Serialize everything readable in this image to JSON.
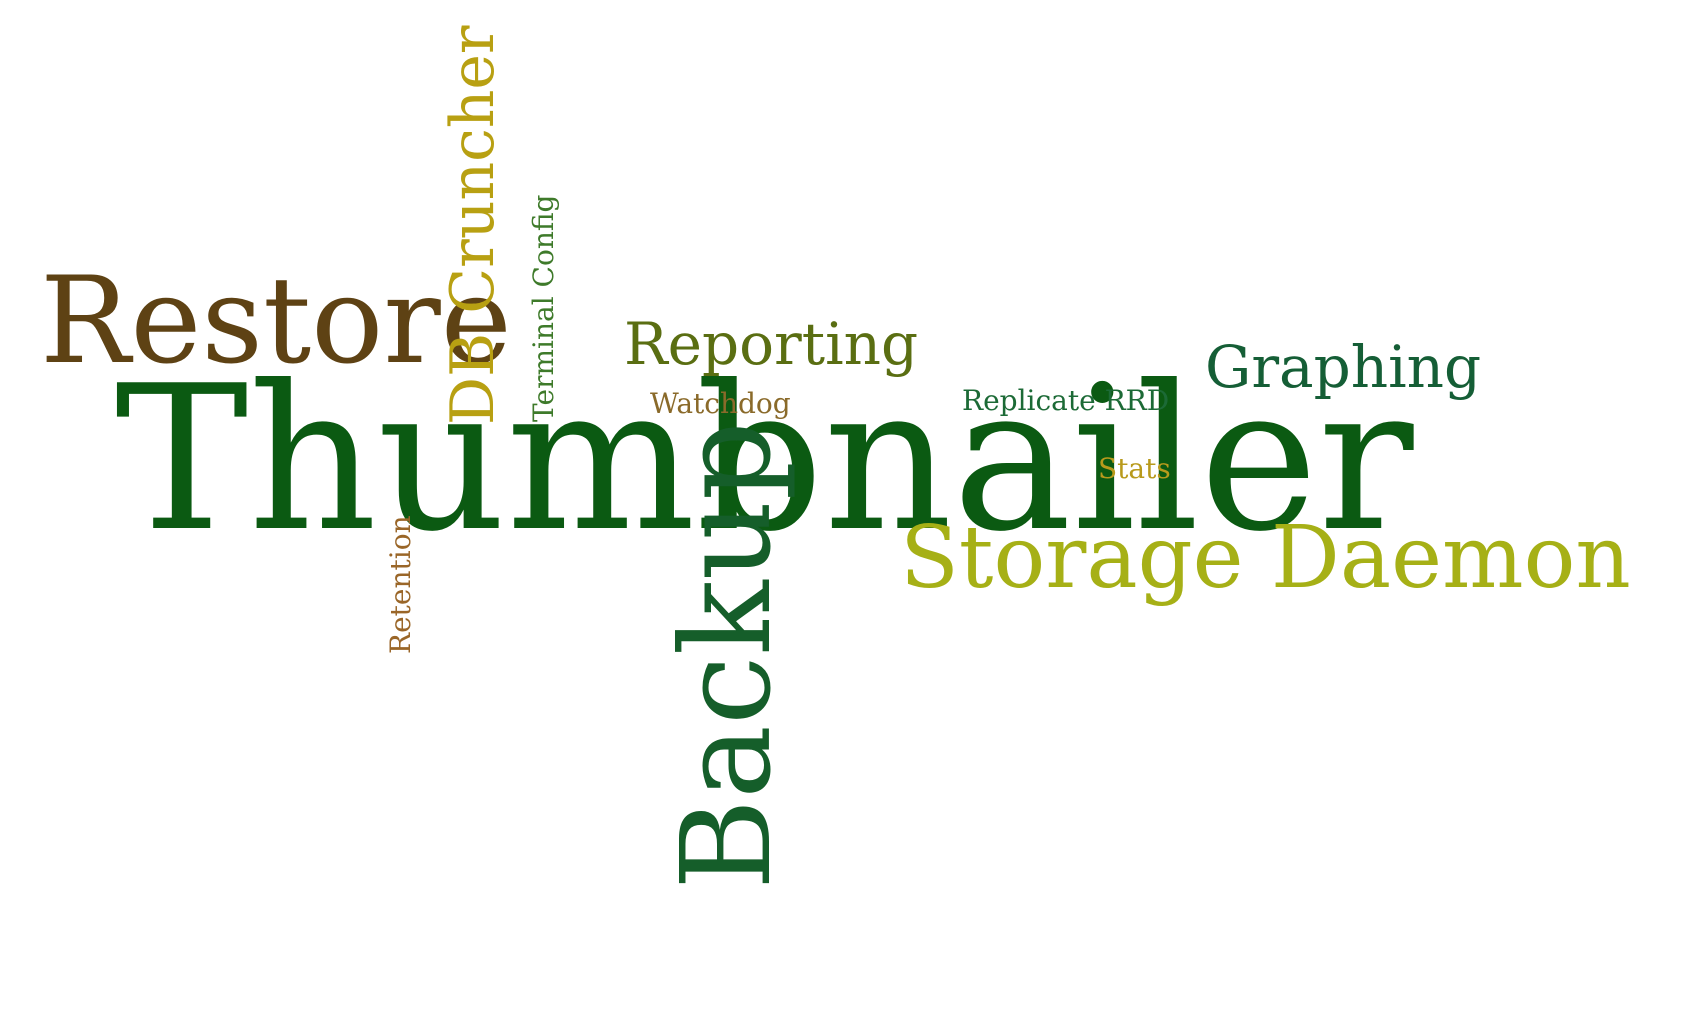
{
  "words": {
    "thumbnailer": {
      "text": "Thumbnailer",
      "color": "#0b5a12"
    },
    "restore": {
      "text": "Restore",
      "color": "#5e4214"
    },
    "storage_daemon": {
      "text": "Storage Daemon",
      "color": "#a6b016"
    },
    "reporting": {
      "text": "Reporting",
      "color": "#5a6e12"
    },
    "graphing": {
      "text": "Graphing",
      "color": "#155e36"
    },
    "watchdog": {
      "text": "Watchdog",
      "color": "#8a6a2a"
    },
    "replicate_rrd": {
      "text": "Replicate RRD",
      "color": "#1c6a36"
    },
    "stats": {
      "text": "Stats",
      "color": "#b89a1c"
    },
    "backup": {
      "text": "Backup",
      "color": "#155e2a"
    },
    "db_cruncher": {
      "text": "DB Cruncher",
      "color": "#b8a012"
    },
    "terminal_config": {
      "text": "Terminal Config",
      "color": "#3e7a2a"
    },
    "retention": {
      "text": "Retention",
      "color": "#9a6628"
    }
  }
}
